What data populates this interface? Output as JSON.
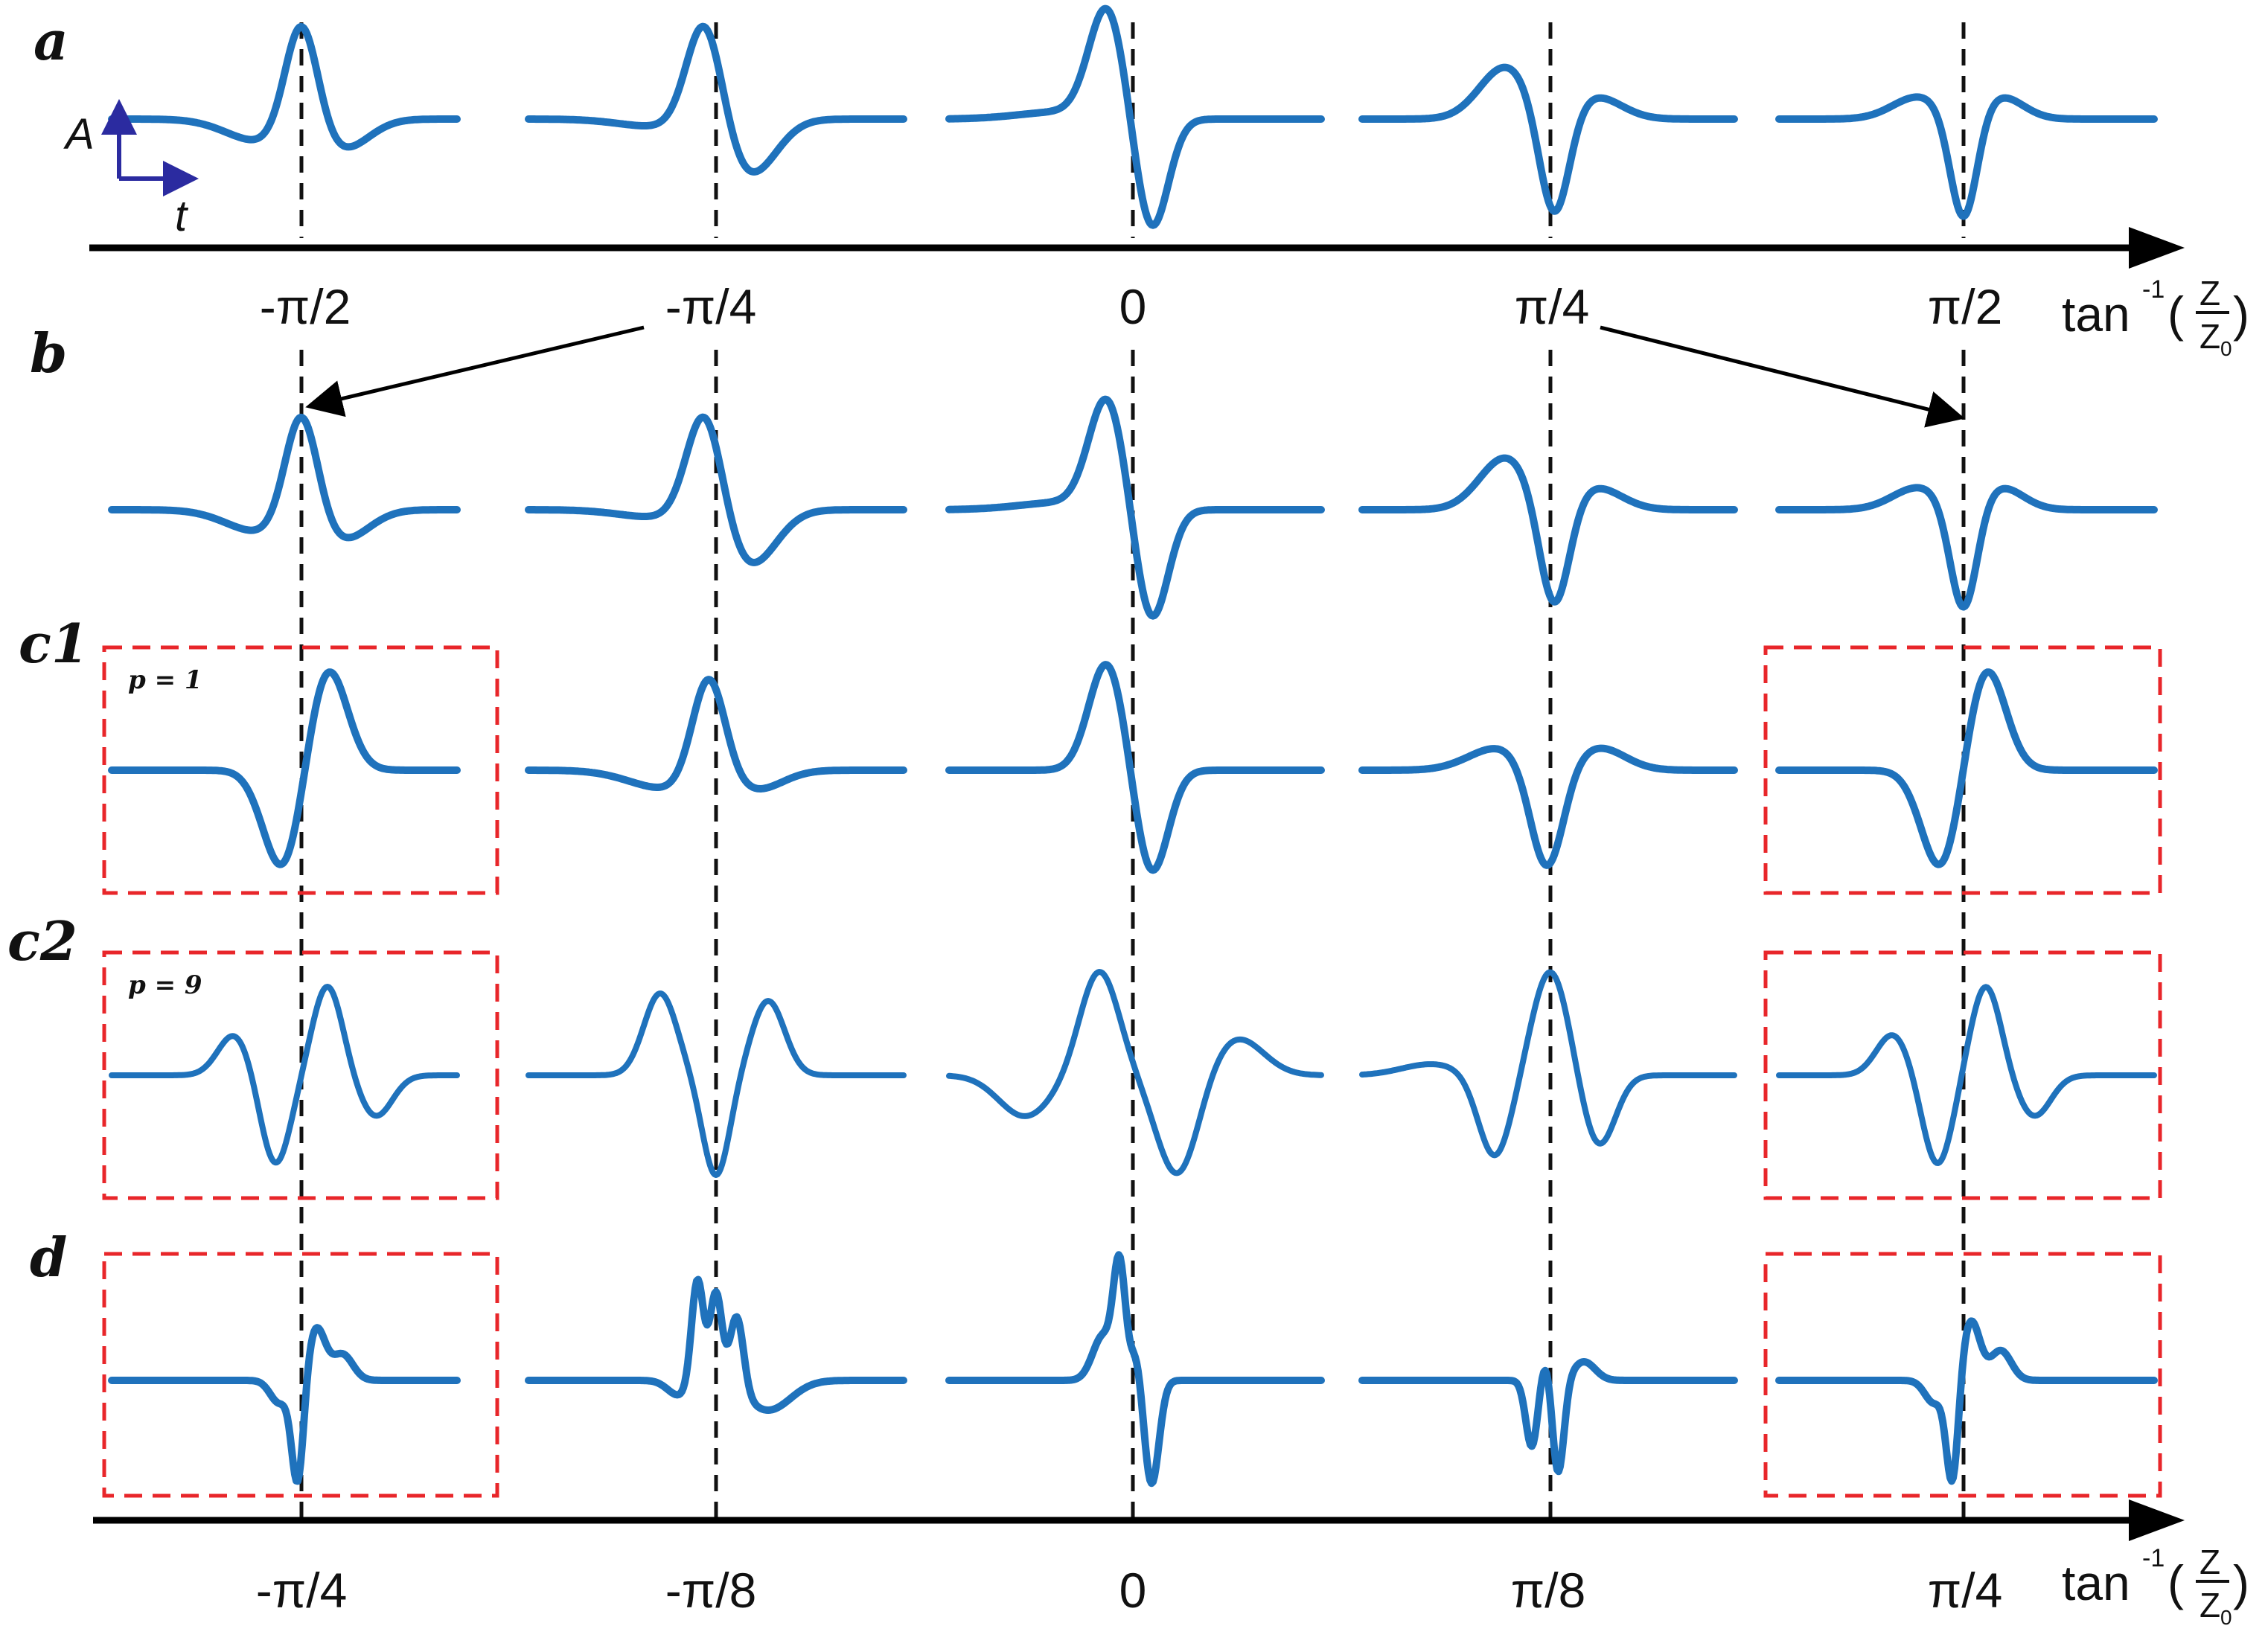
{
  "row_labels": {
    "a": "a",
    "b": "b",
    "c1": "c1",
    "c2": "c2",
    "d": "d"
  },
  "p_labels": {
    "c1": "p = 1",
    "c2": "p = 9"
  },
  "inset": {
    "amplitude": "A",
    "time": "t"
  },
  "axis_top": {
    "ticks": [
      "-π/2",
      "-π/4",
      "0",
      "π/4",
      "π/2"
    ],
    "label_main": "tan",
    "label_sup": "-1",
    "label_num": "Z",
    "label_den": "Z",
    "label_den_sub": "0"
  },
  "axis_bottom": {
    "ticks": [
      "-π/4",
      "-π/8",
      "0",
      "π/8",
      "π/4"
    ],
    "label_main": "tan",
    "label_sup": "-1",
    "label_num": "Z",
    "label_den": "Z",
    "label_den_sub": "0"
  },
  "colors": {
    "wave": "#1f72bc",
    "box": "#e8262a",
    "axis": "#000000"
  }
}
